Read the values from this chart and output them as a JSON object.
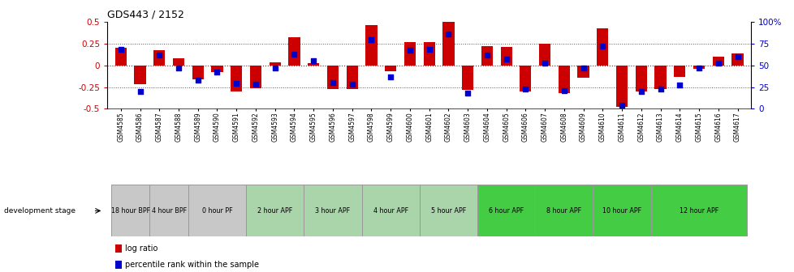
{
  "title": "GDS443 / 2152",
  "samples": [
    "GSM4585",
    "GSM4586",
    "GSM4587",
    "GSM4588",
    "GSM4589",
    "GSM4590",
    "GSM4591",
    "GSM4592",
    "GSM4593",
    "GSM4594",
    "GSM4595",
    "GSM4596",
    "GSM4597",
    "GSM4598",
    "GSM4599",
    "GSM4600",
    "GSM4601",
    "GSM4602",
    "GSM4603",
    "GSM4604",
    "GSM4605",
    "GSM4606",
    "GSM4607",
    "GSM4608",
    "GSM4609",
    "GSM4610",
    "GSM4611",
    "GSM4612",
    "GSM4613",
    "GSM4614",
    "GSM4615",
    "GSM4616",
    "GSM4617"
  ],
  "log_ratio": [
    0.2,
    -0.22,
    0.17,
    0.08,
    -0.16,
    -0.08,
    -0.3,
    -0.26,
    0.03,
    0.32,
    0.02,
    -0.27,
    -0.27,
    0.46,
    -0.07,
    0.27,
    0.27,
    0.5,
    -0.28,
    0.22,
    0.21,
    -0.3,
    0.25,
    -0.32,
    -0.14,
    0.42,
    -0.48,
    -0.3,
    -0.27,
    -0.13,
    -0.04,
    0.1,
    0.14
  ],
  "percentile": [
    68,
    20,
    62,
    47,
    33,
    42,
    29,
    28,
    47,
    63,
    55,
    30,
    28,
    79,
    37,
    67,
    68,
    86,
    18,
    62,
    57,
    23,
    52,
    21,
    47,
    72,
    4,
    20,
    23,
    27,
    47,
    52,
    60
  ],
  "stages": [
    {
      "label": "18 hour BPF",
      "start": 0,
      "end": 1,
      "color": "#c8c8c8"
    },
    {
      "label": "4 hour BPF",
      "start": 2,
      "end": 3,
      "color": "#c8c8c8"
    },
    {
      "label": "0 hour PF",
      "start": 4,
      "end": 6,
      "color": "#c8c8c8"
    },
    {
      "label": "2 hour APF",
      "start": 7,
      "end": 9,
      "color": "#aad4aa"
    },
    {
      "label": "3 hour APF",
      "start": 10,
      "end": 12,
      "color": "#aad4aa"
    },
    {
      "label": "4 hour APF",
      "start": 13,
      "end": 15,
      "color": "#aad4aa"
    },
    {
      "label": "5 hour APF",
      "start": 16,
      "end": 18,
      "color": "#aad4aa"
    },
    {
      "label": "6 hour APF",
      "start": 19,
      "end": 21,
      "color": "#44cc44"
    },
    {
      "label": "8 hour APF",
      "start": 22,
      "end": 24,
      "color": "#44cc44"
    },
    {
      "label": "10 hour APF",
      "start": 25,
      "end": 27,
      "color": "#44cc44"
    },
    {
      "label": "12 hour APF",
      "start": 28,
      "end": 32,
      "color": "#44cc44"
    }
  ],
  "ylim_left": [
    -0.5,
    0.5
  ],
  "ylim_right": [
    0,
    100
  ],
  "left_ticks": [
    -0.5,
    -0.25,
    0,
    0.25,
    0.5
  ],
  "right_ticks": [
    0,
    25,
    50,
    75,
    100
  ],
  "bar_color": "#cc0000",
  "dot_color": "#0000cc",
  "zero_line_color": "#cc0000",
  "dotted_color": "#555555",
  "stage_label_color": "#333333",
  "outer_bg": "#e8e8e8"
}
